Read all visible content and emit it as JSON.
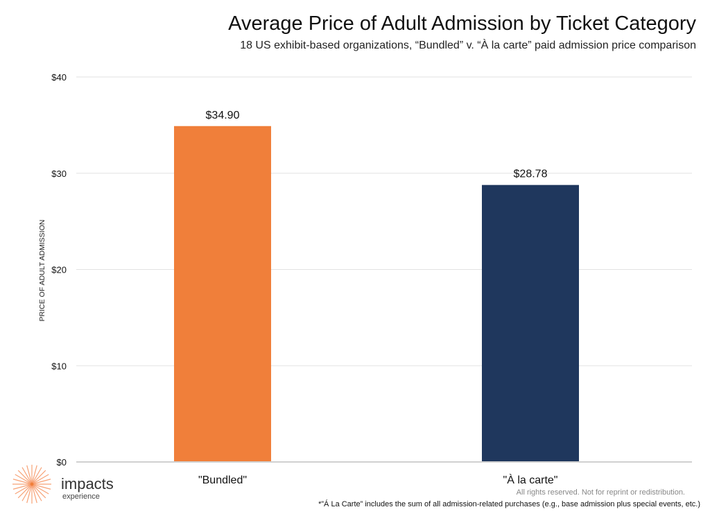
{
  "chart_data": {
    "type": "bar",
    "title": "Average Price of Adult Admission by Ticket Category",
    "subtitle": "18 US exhibit-based organizations, “Bundled” v. “À la carte” paid admission price comparison",
    "xlabel": "",
    "ylabel": "PRICE OF ADULT ADMISSION",
    "ylim": [
      0,
      40
    ],
    "yticks": [
      0,
      10,
      20,
      30,
      40
    ],
    "ytick_labels": [
      "$0",
      "$10",
      "$20",
      "$30",
      "$40"
    ],
    "grid": true,
    "categories": [
      "\"Bundled\"",
      "\"À la carte\""
    ],
    "values": [
      34.9,
      28.78
    ],
    "data_labels": [
      "$34.90",
      "$28.78"
    ],
    "colors": [
      "#F07F3A",
      "#1F375D"
    ]
  },
  "footer": {
    "rights": "All rights reserved. Not for reprint or redistribution.",
    "note": "*”Á La Carte” includes the sum of all admission-related purchases (e.g., base admission plus special events, etc.)"
  },
  "logo": {
    "name": "impacts",
    "sub": "experience",
    "color": "#F7A276"
  }
}
